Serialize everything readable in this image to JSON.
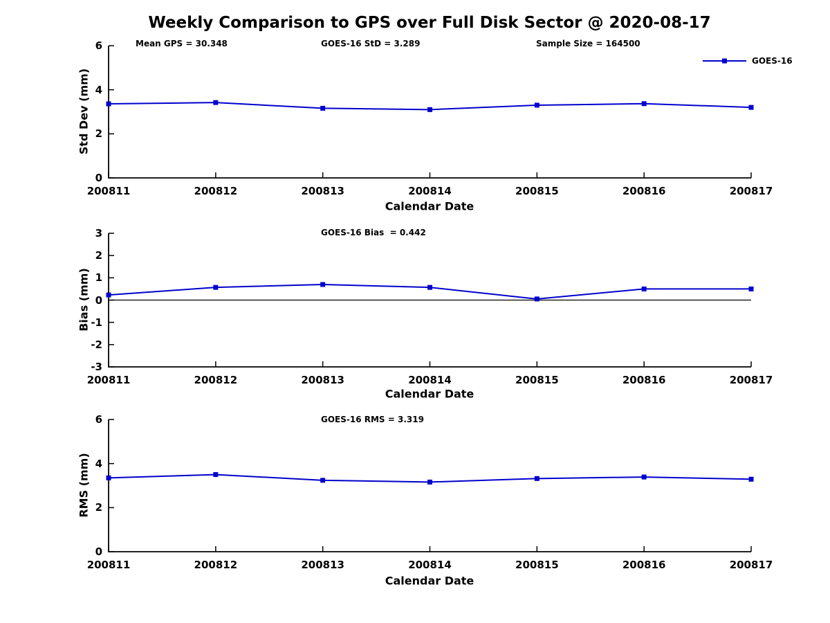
{
  "figure": {
    "title": "Weekly Comparison to GPS over Full Disk Sector @ 2020-08-17"
  },
  "legend": {
    "label": "GOES-16",
    "position": "top-right"
  },
  "colors": {
    "line": "#0000CD",
    "axis": "#000000",
    "text": "#000000",
    "background": "#FFFFFF"
  },
  "chart_data": [
    {
      "type": "line",
      "ylabel": "Std Dev (mm)",
      "xlabel": "Calendar Date",
      "ylim": [
        0,
        6
      ],
      "yticks": [
        0,
        2,
        4,
        6
      ],
      "categories": [
        "200811",
        "200812",
        "200813",
        "200814",
        "200815",
        "200816",
        "200817"
      ],
      "annotations": [
        "Mean GPS = 30.348",
        "GOES-16 StD = 3.289",
        "Sample Size = 164500"
      ],
      "series": [
        {
          "name": "GOES-16",
          "marker": "square",
          "values": [
            3.36,
            3.42,
            3.16,
            3.1,
            3.3,
            3.37,
            3.2
          ]
        }
      ],
      "zero_line": false,
      "grid": false,
      "legend_visible": true
    },
    {
      "type": "line",
      "ylabel": "Bias (mm)",
      "xlabel": "Calendar Date",
      "ylim": [
        -3,
        3
      ],
      "yticks": [
        -3,
        -2,
        -1,
        0,
        1,
        2,
        3
      ],
      "categories": [
        "200811",
        "200812",
        "200813",
        "200814",
        "200815",
        "200816",
        "200817"
      ],
      "annotations": [
        "GOES-16 Bias  = 0.442"
      ],
      "series": [
        {
          "name": "GOES-16",
          "marker": "square",
          "values": [
            0.23,
            0.57,
            0.7,
            0.57,
            0.05,
            0.5,
            0.5
          ]
        }
      ],
      "zero_line": true,
      "grid": false,
      "legend_visible": false
    },
    {
      "type": "line",
      "ylabel": "RMS (mm)",
      "xlabel": "Calendar Date",
      "ylim": [
        0,
        6
      ],
      "yticks": [
        0,
        2,
        4,
        6
      ],
      "categories": [
        "200811",
        "200812",
        "200813",
        "200814",
        "200815",
        "200816",
        "200817"
      ],
      "annotations": [
        "GOES-16 RMS = 3.319"
      ],
      "series": [
        {
          "name": "GOES-16",
          "marker": "square",
          "values": [
            3.35,
            3.5,
            3.24,
            3.16,
            3.32,
            3.39,
            3.29
          ]
        }
      ],
      "zero_line": false,
      "grid": false,
      "legend_visible": false
    }
  ]
}
